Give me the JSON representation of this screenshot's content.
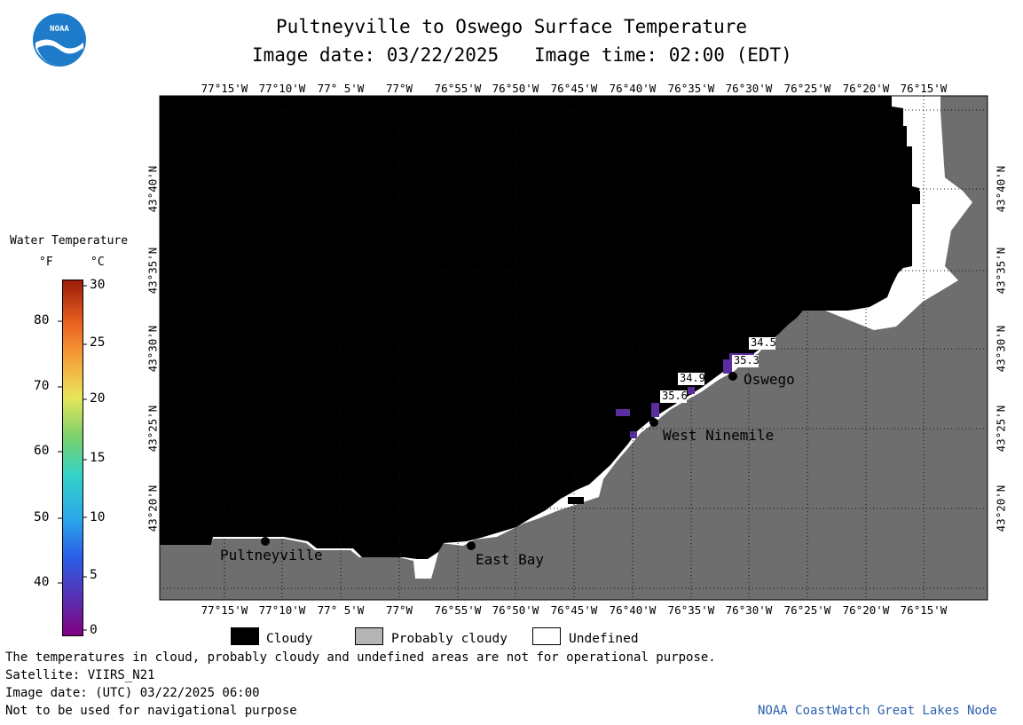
{
  "header": {
    "title": "Pultneyville to Oswego Surface Temperature",
    "subtitle_date": "Image date: 03/22/2025",
    "subtitle_time": "Image time: 02:00 (EDT)"
  },
  "logo": {
    "text": "NOAA"
  },
  "map": {
    "lon_ticks": [
      "77°15'W",
      "77°10'W",
      "77° 5'W",
      "77°W",
      "76°55'W",
      "76°50'W",
      "76°45'W",
      "76°40'W",
      "76°35'W",
      "76°30'W",
      "76°25'W",
      "76°20'W",
      "76°15'W"
    ],
    "lat_ticks": [
      "43°40'N",
      "43°35'N",
      "43°30'N",
      "43°25'N",
      "43°20'N"
    ],
    "places": [
      {
        "name": "Pultneyville"
      },
      {
        "name": "East Bay"
      },
      {
        "name": "West Ninemile"
      },
      {
        "name": "Oswego"
      }
    ],
    "temperature_labels": [
      "34.5",
      "35.3",
      "34.9",
      "35.6"
    ],
    "colors": {
      "cloud": "#000000",
      "land": "#6e6e6e",
      "undefined": "#ffffff",
      "warm_pixel": "#5b2d9e"
    }
  },
  "colorbar": {
    "title": "Water Temperature",
    "unit_f": "°F",
    "unit_c": "°C",
    "f_ticks": [
      "80",
      "70",
      "60",
      "50",
      "40"
    ],
    "c_ticks": [
      "30",
      "25",
      "20",
      "15",
      "10",
      "5",
      "0"
    ]
  },
  "legend": {
    "items": [
      {
        "label": "Cloudy",
        "color": "#000000"
      },
      {
        "label": "Probably cloudy",
        "color": "#b4b4b4"
      },
      {
        "label": "Undefined",
        "color": "#ffffff"
      }
    ]
  },
  "notes": {
    "disclaimer": "The temperatures in cloud, probably cloudy and undefined areas are not for operational purpose.",
    "satellite": "Satellite: VIIRS_N21",
    "utc_date": "Image date: (UTC) 03/22/2025  06:00",
    "nav_warning": "Not to be used for navigational purpose",
    "credit": "NOAA CoastWatch Great Lakes Node"
  }
}
